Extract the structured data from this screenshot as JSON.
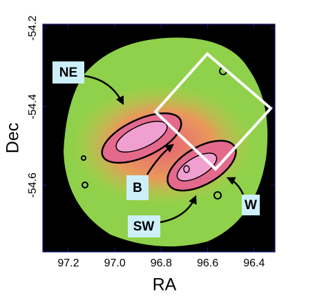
{
  "chart_data": {
    "type": "image",
    "x_label": "RA",
    "y_label": "Dec",
    "xlim": [
      97.31,
      96.31
    ],
    "ylim": [
      -54.19,
      -54.77
    ],
    "xticks": [
      97.2,
      {
        "value": 97.0,
        "label": "97.0"
      },
      96.8,
      96.6,
      96.4
    ],
    "yticks": [
      -54.2,
      -54.4,
      -54.6
    ],
    "annotations": [
      "NE",
      "B",
      "SW",
      "W"
    ]
  }
}
